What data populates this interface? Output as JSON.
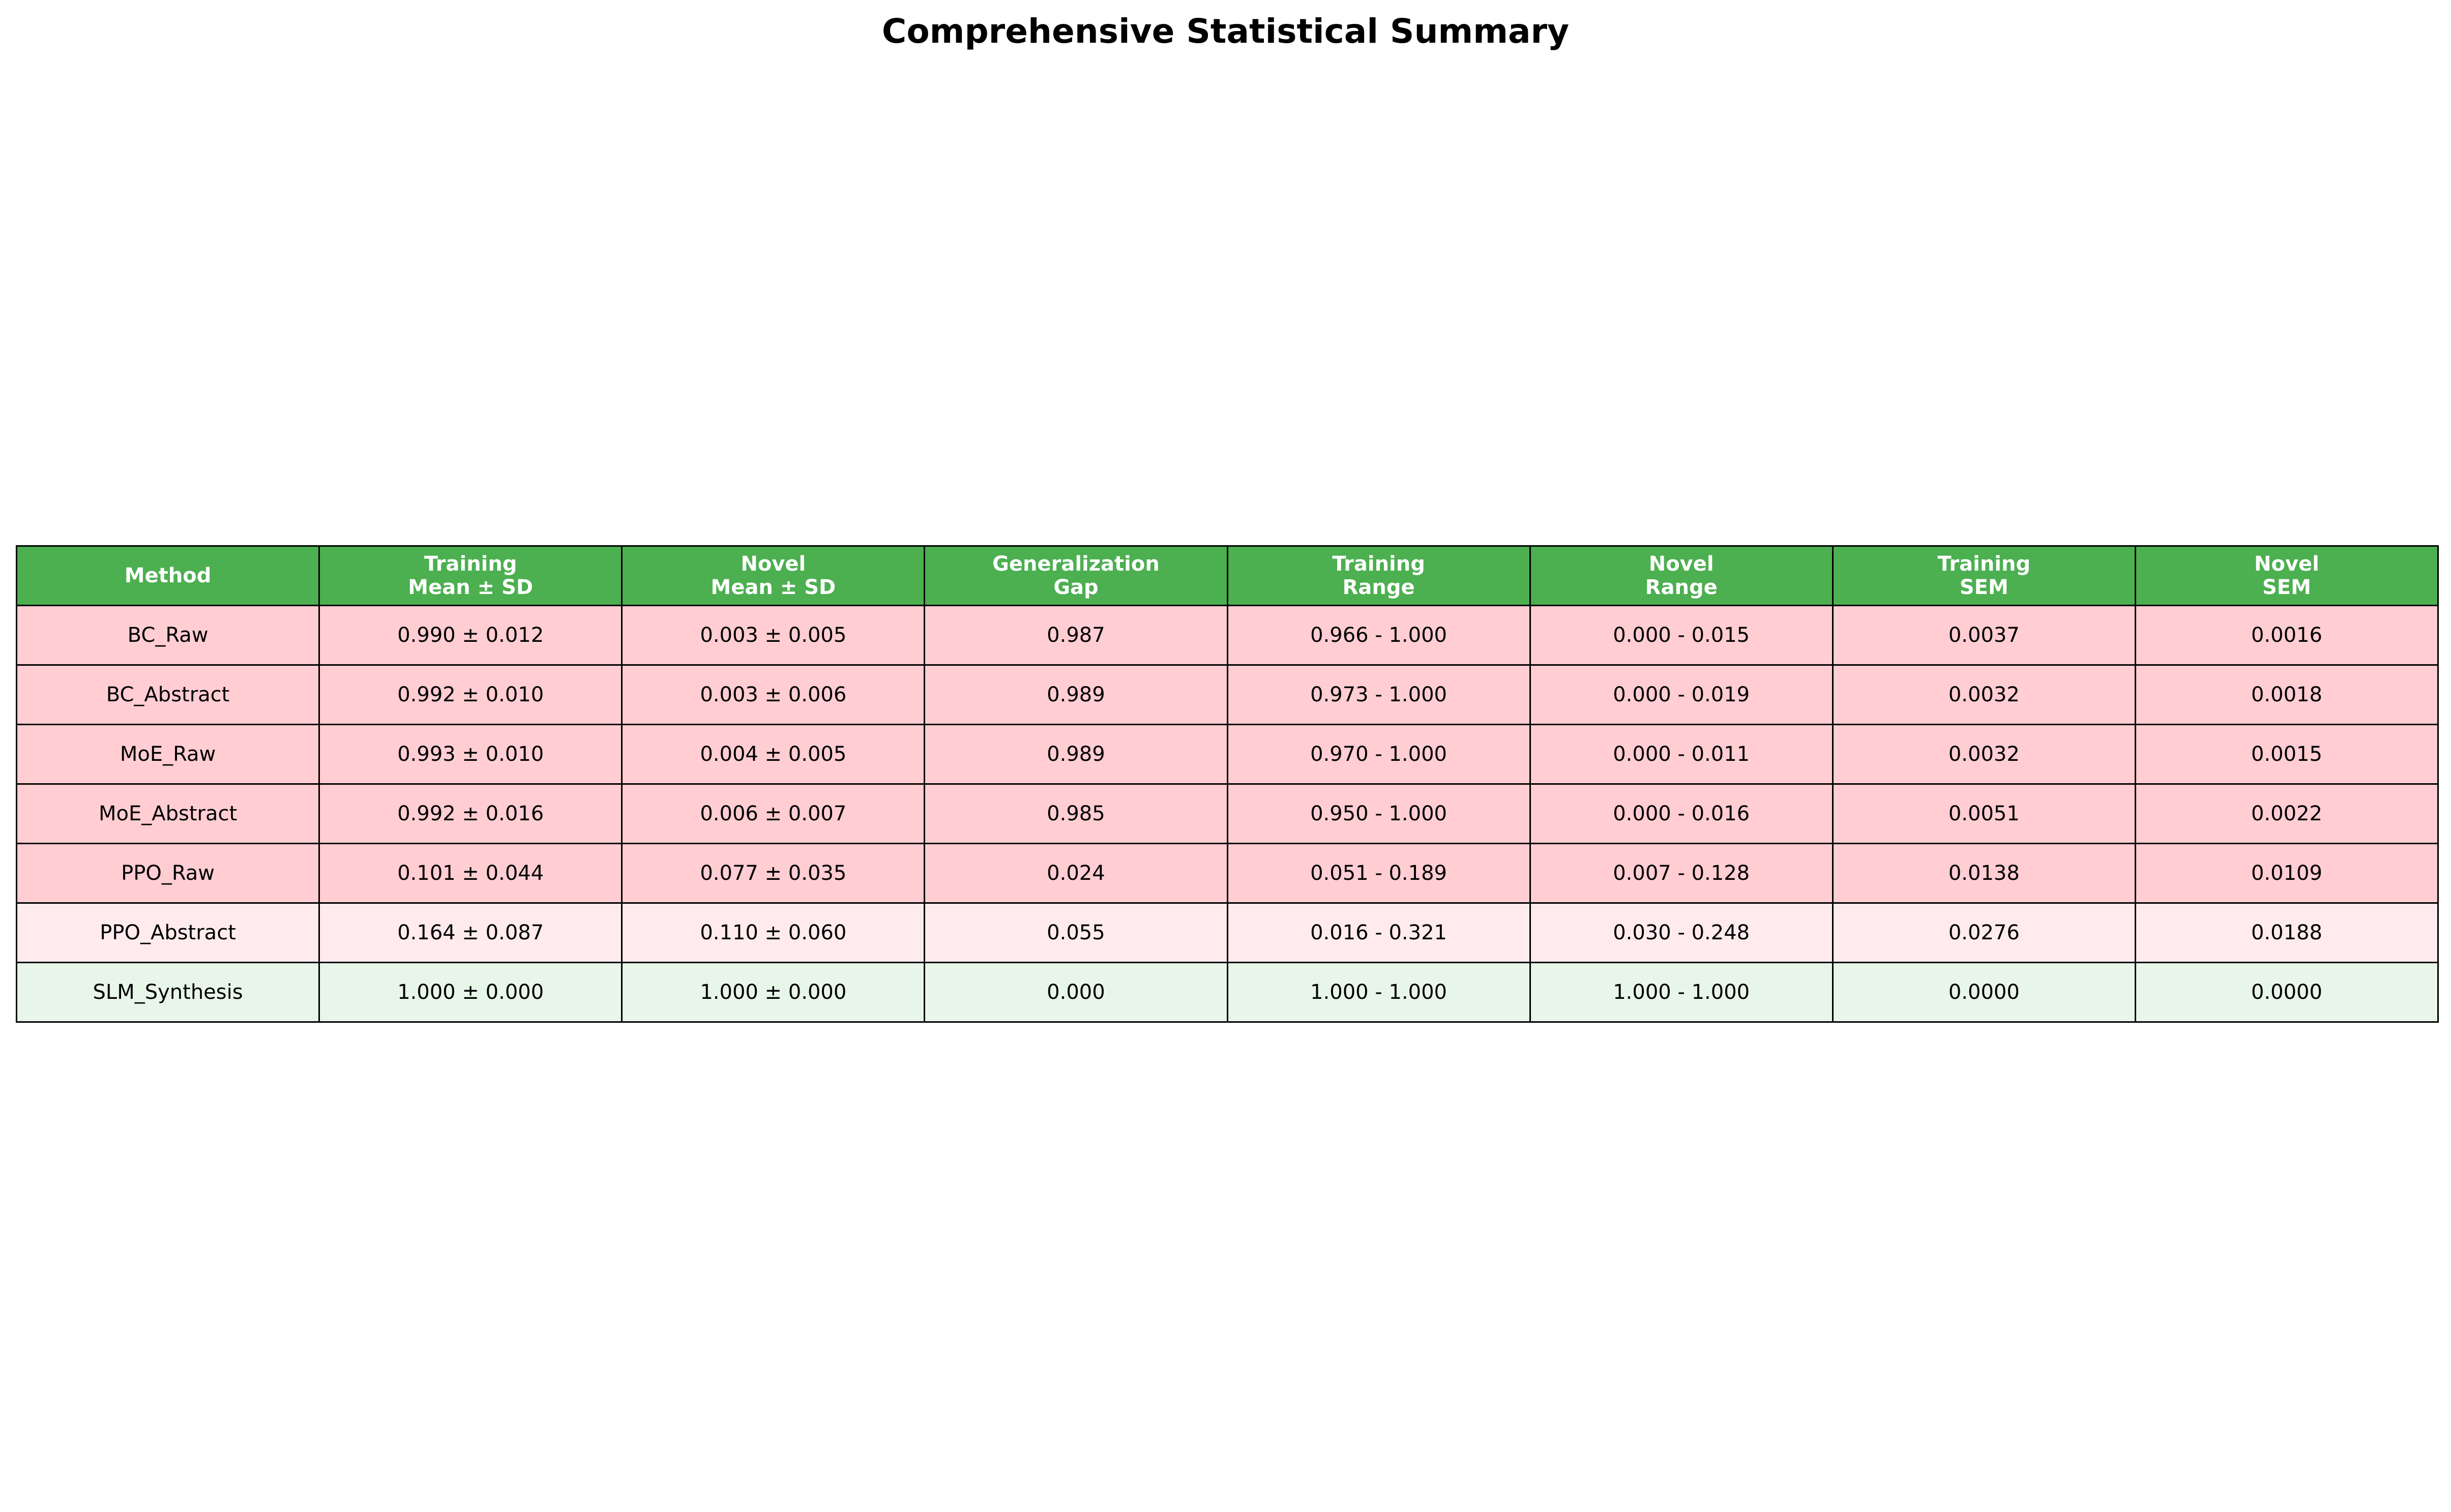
{
  "chart_data": {
    "type": "table",
    "title": "Comprehensive Statistical Summary",
    "columns": [
      [
        "Method"
      ],
      [
        "Training",
        "Mean ± SD"
      ],
      [
        "Novel",
        "Mean ± SD"
      ],
      [
        "Generalization",
        "Gap"
      ],
      [
        "Training",
        "Range"
      ],
      [
        "Novel",
        "Range"
      ],
      [
        "Training",
        "SEM"
      ],
      [
        "Novel",
        "SEM"
      ]
    ],
    "rows": [
      [
        "BC_Raw",
        "0.990 ± 0.012",
        "0.003 ± 0.005",
        "0.987",
        "0.966 - 1.000",
        "0.000 - 0.015",
        "0.0037",
        "0.0016"
      ],
      [
        "BC_Abstract",
        "0.992 ± 0.010",
        "0.003 ± 0.006",
        "0.989",
        "0.973 - 1.000",
        "0.000 - 0.019",
        "0.0032",
        "0.0018"
      ],
      [
        "MoE_Raw",
        "0.993 ± 0.010",
        "0.004 ± 0.005",
        "0.989",
        "0.970 - 1.000",
        "0.000 - 0.011",
        "0.0032",
        "0.0015"
      ],
      [
        "MoE_Abstract",
        "0.992 ± 0.016",
        "0.006 ± 0.007",
        "0.985",
        "0.950 - 1.000",
        "0.000 - 0.016",
        "0.0051",
        "0.0022"
      ],
      [
        "PPO_Raw",
        "0.101 ± 0.044",
        "0.077 ± 0.035",
        "0.024",
        "0.051 - 0.189",
        "0.007 - 0.128",
        "0.0138",
        "0.0109"
      ],
      [
        "PPO_Abstract",
        "0.164 ± 0.087",
        "0.110 ± 0.060",
        "0.055",
        "0.016 - 0.321",
        "0.030 - 0.248",
        "0.0276",
        "0.0188"
      ],
      [
        "SLM_Synthesis",
        "1.000 ± 0.000",
        "1.000 ± 0.000",
        "0.000",
        "1.000 - 1.000",
        "1.000 - 1.000",
        "0.0000",
        "0.0000"
      ]
    ],
    "colors": {
      "header": "#4caf50",
      "row_fill": [
        "#ffcdd2",
        "#ffcdd2",
        "#ffcdd2",
        "#ffcdd2",
        "#ffcdd2",
        "#ffebee",
        "#e8f5e9"
      ],
      "border": "#000000"
    }
  }
}
